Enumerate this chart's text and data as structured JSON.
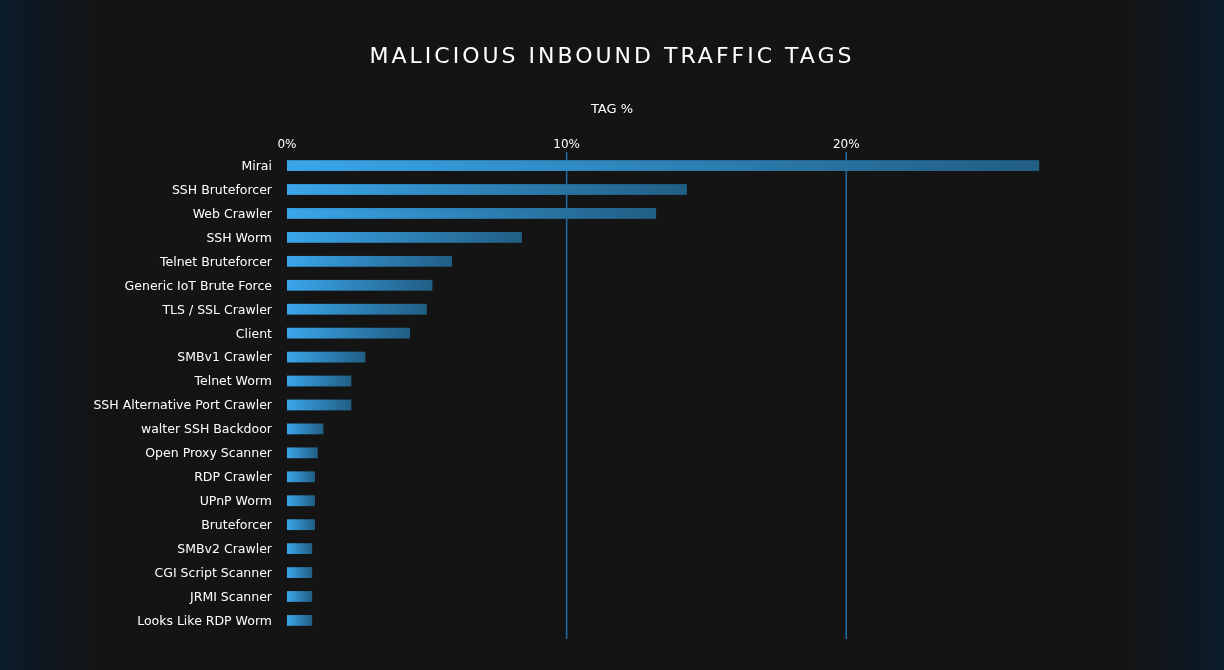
{
  "chart_data": {
    "type": "bar",
    "orientation": "horizontal",
    "title": "MALICIOUS INBOUND TRAFFIC TAGS",
    "xlabel": "TAG %",
    "categories": [
      "Mirai",
      "SSH Bruteforcer",
      "Web Crawler",
      "SSH Worm",
      "Telnet Bruteforcer",
      "Generic IoT Brute Force",
      "TLS / SSL Crawler",
      "Client",
      "SMBv1 Crawler",
      "Telnet Worm",
      "SSH Alternative Port Crawler",
      "walter SSH Backdoor",
      "Open Proxy Scanner",
      "RDP Crawler",
      "UPnP Worm",
      "Bruteforcer",
      "SMBv2 Crawler",
      "CGI Script Scanner",
      "JRMI Scanner",
      "Looks Like RDP Worm"
    ],
    "values": [
      26.9,
      14.3,
      13.2,
      8.4,
      5.9,
      5.2,
      5.0,
      4.4,
      2.8,
      2.3,
      2.3,
      1.3,
      1.1,
      1.0,
      1.0,
      1.0,
      0.9,
      0.9,
      0.9,
      0.9
    ],
    "color": "#3aa6ea",
    "xlim": [
      0,
      27
    ],
    "xticks": [
      {
        "value": 0,
        "label": "0%"
      },
      {
        "value": 10,
        "label": "10%"
      },
      {
        "value": 20,
        "label": "20%"
      }
    ],
    "grid": "x"
  }
}
